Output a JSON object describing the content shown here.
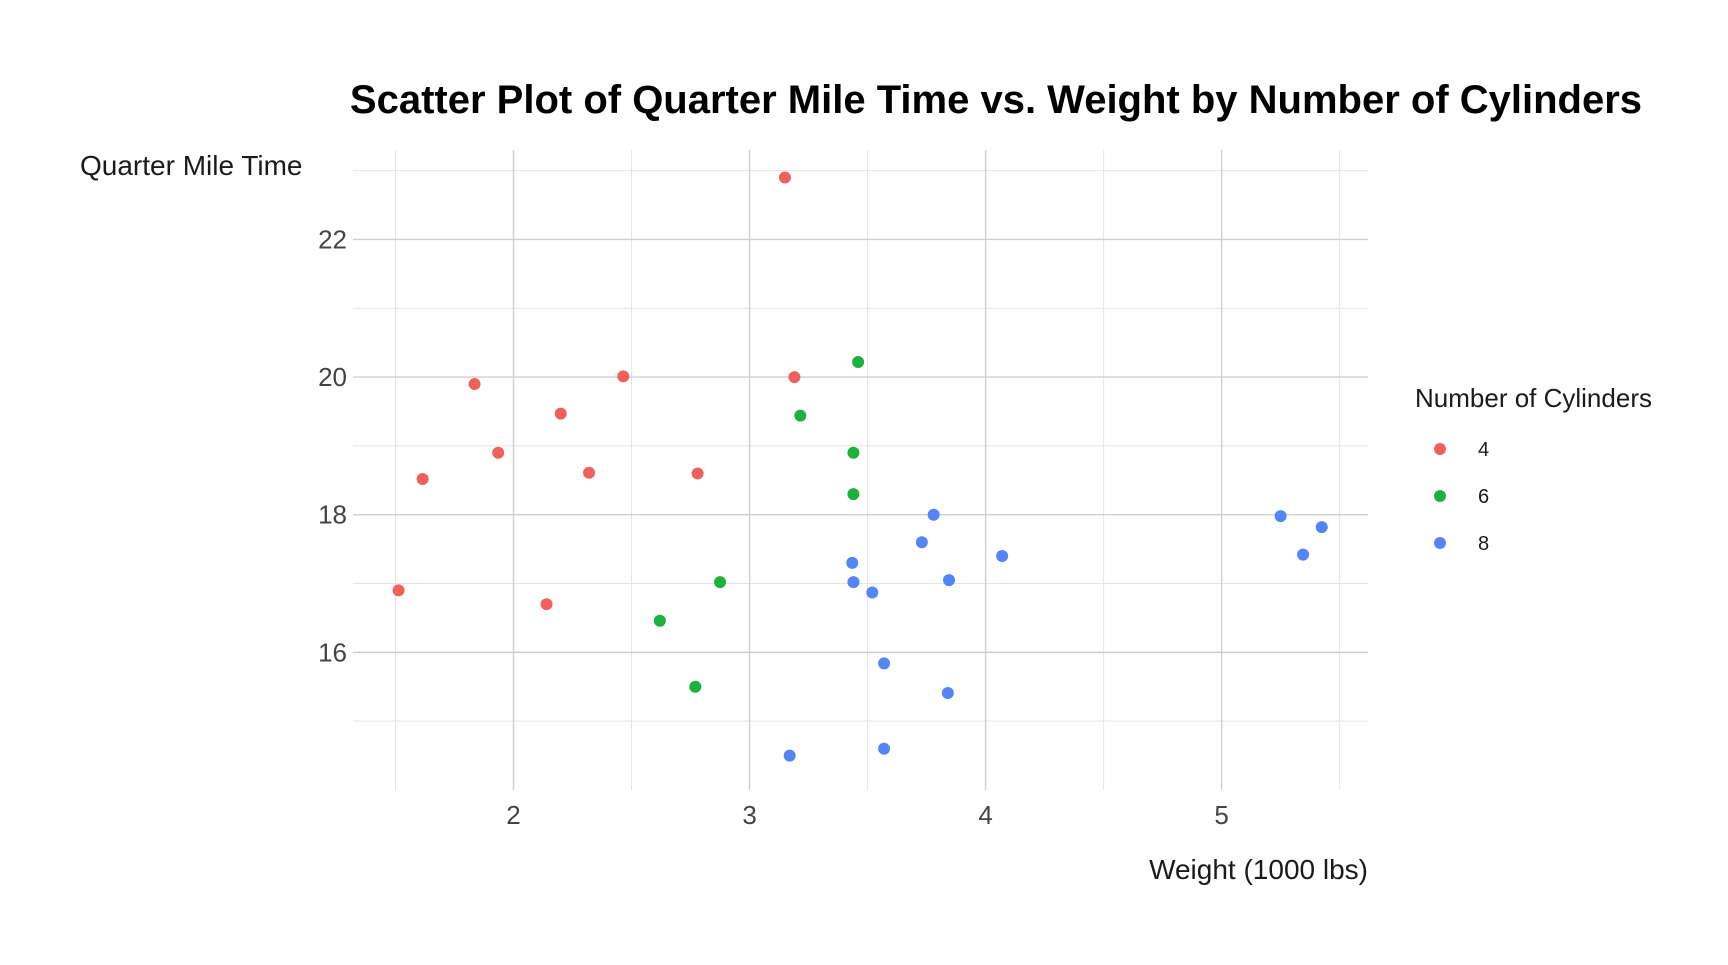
{
  "chart_data": {
    "type": "scatter",
    "title": "Scatter Plot of Quarter Mile Time vs. Weight by Number of Cylinders",
    "xlabel": "Weight (1000 lbs)",
    "ylabel": "Quarter Mile Time",
    "xlim": [
      1.32,
      5.62
    ],
    "ylim": [
      14.0,
      23.3
    ],
    "x_ticks": [
      2,
      3,
      4,
      5
    ],
    "x_tick_labels": [
      "2",
      "3",
      "4",
      "5"
    ],
    "x_minor": [
      1.5,
      2.5,
      3.5,
      4.5,
      5.5
    ],
    "y_ticks": [
      16,
      18,
      20,
      22
    ],
    "y_tick_labels": [
      "16",
      "18",
      "20",
      "22"
    ],
    "y_minor": [
      15,
      17,
      19,
      21,
      23
    ],
    "grid": true,
    "legend": {
      "title": "Number of Cylinders",
      "position": "right"
    },
    "series": [
      {
        "name": "4",
        "color": "#F0615C",
        "points": [
          [
            2.32,
            18.61
          ],
          [
            3.19,
            20.0
          ],
          [
            3.15,
            22.9
          ],
          [
            2.2,
            19.47
          ],
          [
            1.615,
            18.52
          ],
          [
            1.835,
            19.9
          ],
          [
            2.465,
            20.01
          ],
          [
            1.935,
            18.9
          ],
          [
            2.14,
            16.7
          ],
          [
            1.513,
            16.9
          ],
          [
            2.78,
            18.6
          ]
        ]
      },
      {
        "name": "6",
        "color": "#1CB13A",
        "points": [
          [
            2.62,
            16.46
          ],
          [
            2.875,
            17.02
          ],
          [
            3.215,
            19.44
          ],
          [
            3.46,
            20.22
          ],
          [
            3.44,
            18.3
          ],
          [
            3.44,
            18.9
          ],
          [
            2.77,
            15.5
          ]
        ]
      },
      {
        "name": "8",
        "color": "#5385F7",
        "points": [
          [
            3.44,
            17.02
          ],
          [
            3.57,
            15.84
          ],
          [
            4.07,
            17.4
          ],
          [
            3.73,
            17.6
          ],
          [
            3.78,
            18.0
          ],
          [
            5.25,
            17.98
          ],
          [
            5.424,
            17.82
          ],
          [
            5.345,
            17.42
          ],
          [
            3.52,
            16.87
          ],
          [
            3.435,
            17.3
          ],
          [
            3.84,
            15.41
          ],
          [
            3.845,
            17.05
          ],
          [
            3.17,
            14.5
          ],
          [
            3.57,
            14.6
          ]
        ]
      }
    ]
  }
}
